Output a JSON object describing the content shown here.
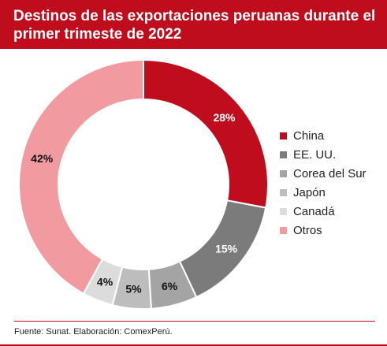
{
  "title": "Destinos de las exportaciones peruanas durante el primer trimeste de 2022",
  "source": "Fuente: Sunat. Elaboración: ComexPerú.",
  "colors": {
    "brand_red": "#c00d1e"
  },
  "chart_data": {
    "type": "pie",
    "donut": true,
    "title": "Destinos de las exportaciones peruanas durante el primer trimeste de 2022",
    "legend_position": "right",
    "categories": [
      "China",
      "EE. UU.",
      "Corea del Sur",
      "Japón",
      "Canadá",
      "Otros"
    ],
    "values": [
      28,
      15,
      6,
      5,
      4,
      42
    ],
    "labels": [
      "28%",
      "15%",
      "6%",
      "5%",
      "4%",
      "42%"
    ],
    "colors": [
      "#c00d1e",
      "#7b7b7b",
      "#a4a4a4",
      "#bdbdbd",
      "#dcdcdc",
      "#f19a9f"
    ]
  }
}
